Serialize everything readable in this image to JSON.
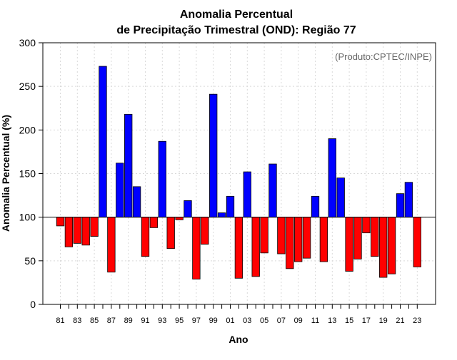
{
  "chart_data": {
    "type": "bar",
    "title_line1": "Anomalia Percentual",
    "title_line2": "de Precipitação Trimestral (OND): Região 77",
    "xlabel": "Ano",
    "ylabel": "Anomalia Percentual (%)",
    "credit": "(Produto:CPTEC/INPE)",
    "baseline": 100,
    "ylim": [
      0,
      300
    ],
    "yticks": [
      0,
      50,
      100,
      150,
      200,
      250,
      300
    ],
    "grid": true,
    "colors": {
      "above": "#0000ff",
      "below": "#ff0000",
      "outline": "#000000",
      "grid": "#d9d9d9"
    },
    "categories": [
      "81",
      "82",
      "83",
      "84",
      "85",
      "86",
      "87",
      "88",
      "89",
      "90",
      "91",
      "92",
      "93",
      "94",
      "95",
      "96",
      "97",
      "98",
      "99",
      "00",
      "01",
      "02",
      "03",
      "04",
      "05",
      "06",
      "07",
      "08",
      "09",
      "10",
      "11",
      "12",
      "13",
      "14",
      "15",
      "16",
      "17",
      "18",
      "19",
      "20",
      "21",
      "22",
      "23"
    ],
    "xtick_labels": [
      "81",
      "83",
      "85",
      "87",
      "89",
      "91",
      "93",
      "95",
      "97",
      "99",
      "01",
      "03",
      "05",
      "07",
      "09",
      "11",
      "13",
      "15",
      "17",
      "19",
      "21",
      "23"
    ],
    "values": [
      90,
      66,
      70,
      68,
      78,
      273,
      37,
      162,
      218,
      135,
      55,
      88,
      187,
      64,
      97,
      119,
      29,
      69,
      241,
      105,
      124,
      30,
      152,
      32,
      59,
      161,
      58,
      41,
      49,
      53,
      124,
      49,
      190,
      145,
      38,
      52,
      82,
      55,
      31,
      35,
      127,
      140,
      43
    ]
  }
}
